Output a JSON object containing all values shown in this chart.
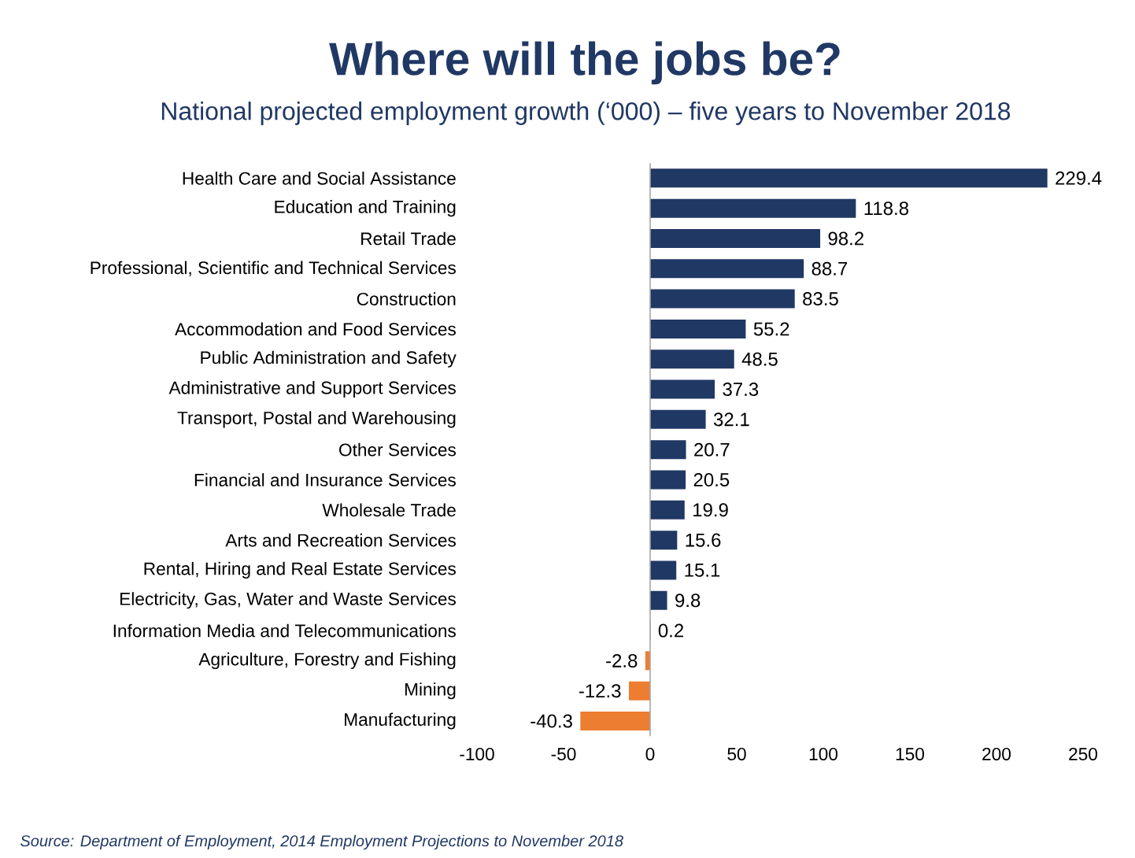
{
  "chart_data": {
    "type": "bar",
    "orientation": "horizontal",
    "title": "Where will the jobs be?",
    "subtitle": "National projected employment growth (‘000) – five years to November 2018",
    "categories": [
      "Health Care and Social Assistance",
      "Education and Training",
      "Retail Trade",
      "Professional, Scientific and Technical Services",
      "Construction",
      "Accommodation and Food Services",
      "Public Administration and Safety",
      "Administrative and Support Services",
      "Transport, Postal and Warehousing",
      "Other Services",
      "Financial and Insurance Services",
      "Wholesale Trade",
      "Arts and Recreation Services",
      "Rental, Hiring and Real Estate Services",
      "Electricity, Gas, Water and Waste Services",
      "Information Media and Telecommunications",
      "Agriculture, Forestry and Fishing",
      "Mining",
      "Manufacturing"
    ],
    "values": [
      229.4,
      118.8,
      98.2,
      88.7,
      83.5,
      55.2,
      48.5,
      37.3,
      32.1,
      20.7,
      20.5,
      19.9,
      15.6,
      15.1,
      9.8,
      0.2,
      -2.8,
      -12.3,
      -40.3
    ],
    "colors": [
      "#203864",
      "#203864",
      "#203864",
      "#203864",
      "#203864",
      "#203864",
      "#203864",
      "#203864",
      "#203864",
      "#203864",
      "#203864",
      "#203864",
      "#203864",
      "#203864",
      "#203864",
      "#203864",
      "#ed7d31",
      "#ed7d31",
      "#ed7d31"
    ],
    "xlim": [
      -100,
      250
    ],
    "xticks": [
      -100,
      -50,
      0,
      50,
      100,
      150,
      200,
      250
    ],
    "data_labels": true,
    "grid": false,
    "ref_lines": [
      {
        "axis": "x",
        "value": 0,
        "color": "#a6a6a6"
      }
    ],
    "annotations": [
      "Source: Department of Employment, 2014 Employment Projections to November 2018"
    ]
  }
}
